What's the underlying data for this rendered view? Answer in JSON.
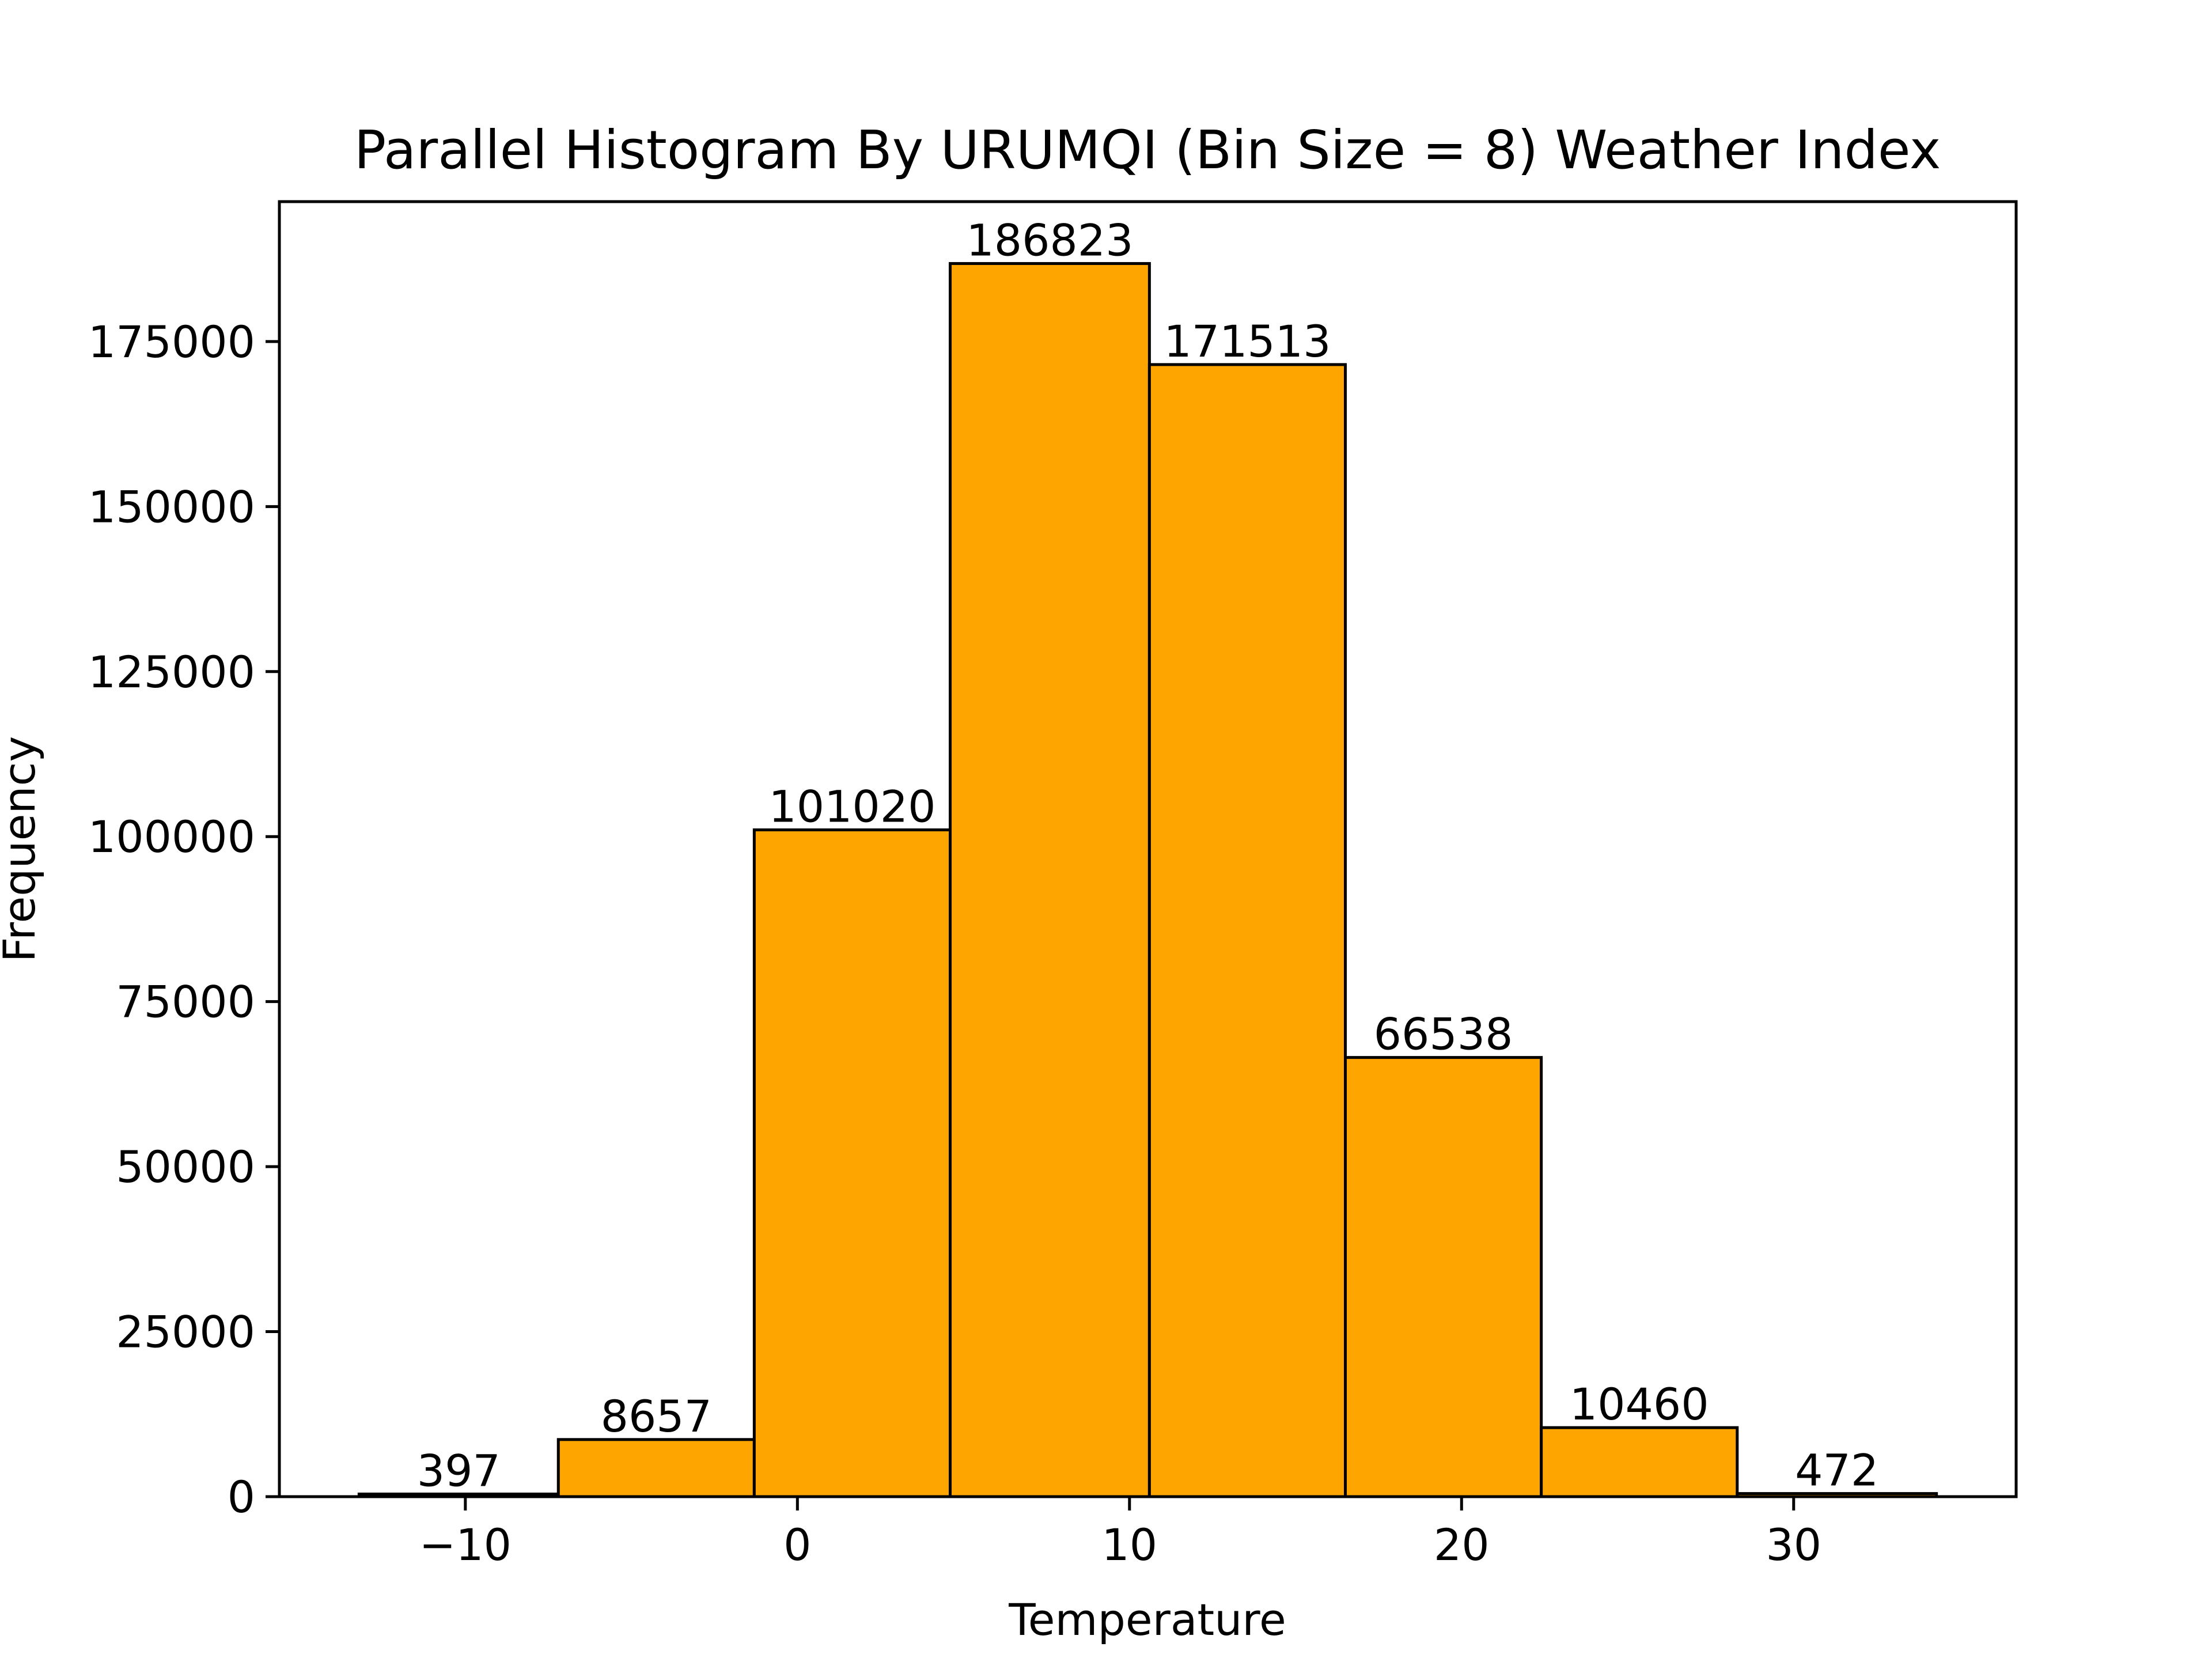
{
  "chart_data": {
    "type": "bar",
    "title": "Parallel Histogram By URUMQI (Bin Size = 8) Weather Index",
    "xlabel": "Temperature",
    "ylabel": "Frequency",
    "bin_edges": [
      -13.2,
      -7.2,
      -1.3,
      4.6,
      10.6,
      16.5,
      22.4,
      28.3,
      34.3
    ],
    "values": [
      397,
      8657,
      101020,
      186823,
      171513,
      66538,
      10460,
      472
    ],
    "value_labels": [
      "397",
      "8657",
      "101020",
      "186823",
      "171513",
      "66538",
      "10460",
      "472"
    ],
    "xlim": [
      -15.6,
      36.7
    ],
    "ylim": [
      0,
      196200
    ],
    "xticks": [
      -10,
      0,
      10,
      20,
      30
    ],
    "xtick_labels": [
      "−10",
      "0",
      "10",
      "20",
      "30"
    ],
    "yticks": [
      0,
      25000,
      50000,
      75000,
      100000,
      125000,
      150000,
      175000
    ],
    "ytick_labels": [
      "0",
      "25000",
      "50000",
      "75000",
      "100000",
      "125000",
      "150000",
      "175000"
    ],
    "bar_color": "#FFA500",
    "edge_color": "#000000",
    "grid": false,
    "legend": "none"
  }
}
